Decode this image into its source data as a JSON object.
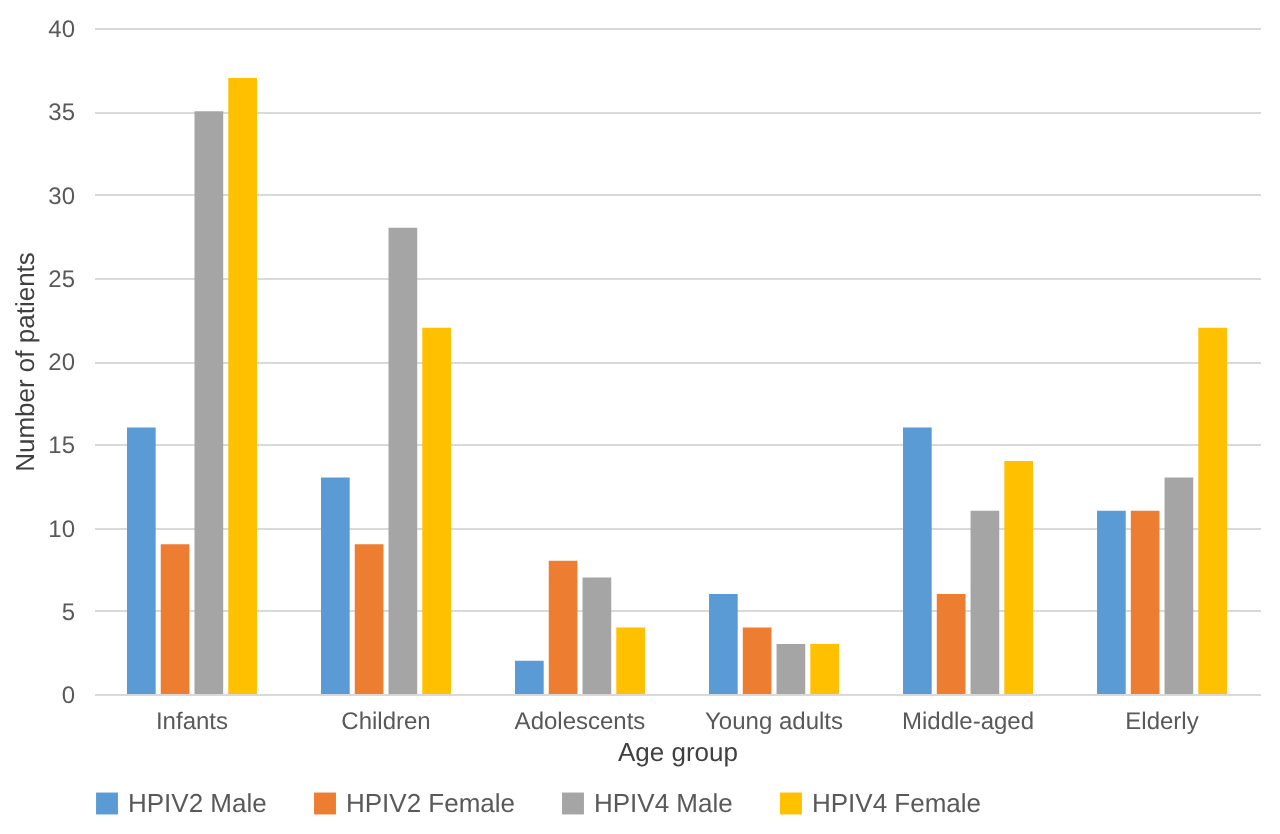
{
  "chart_data": {
    "type": "bar",
    "xlabel": "Age group",
    "ylabel": "Number of patients",
    "categories": [
      "Infants",
      "Children",
      "Adolescents",
      "Young adults",
      "Middle-aged",
      "Elderly"
    ],
    "series": [
      {
        "name": "HPIV2 Male",
        "color": "#5b9bd5",
        "values": [
          16,
          13,
          2,
          6,
          16,
          11
        ]
      },
      {
        "name": "HPIV2 Female",
        "color": "#ed7d31",
        "values": [
          9,
          9,
          8,
          4,
          6,
          11
        ]
      },
      {
        "name": "HPIV4 Male",
        "color": "#a5a5a5",
        "values": [
          35,
          28,
          7,
          3,
          11,
          13
        ]
      },
      {
        "name": "HPIV4 Female",
        "color": "#ffc000",
        "values": [
          37,
          22,
          4,
          3,
          14,
          22
        ]
      }
    ],
    "ylim": [
      0,
      40
    ],
    "yticks": [
      0,
      5,
      10,
      15,
      20,
      25,
      30,
      35,
      40
    ],
    "grid": "y",
    "legend": "bottom"
  }
}
